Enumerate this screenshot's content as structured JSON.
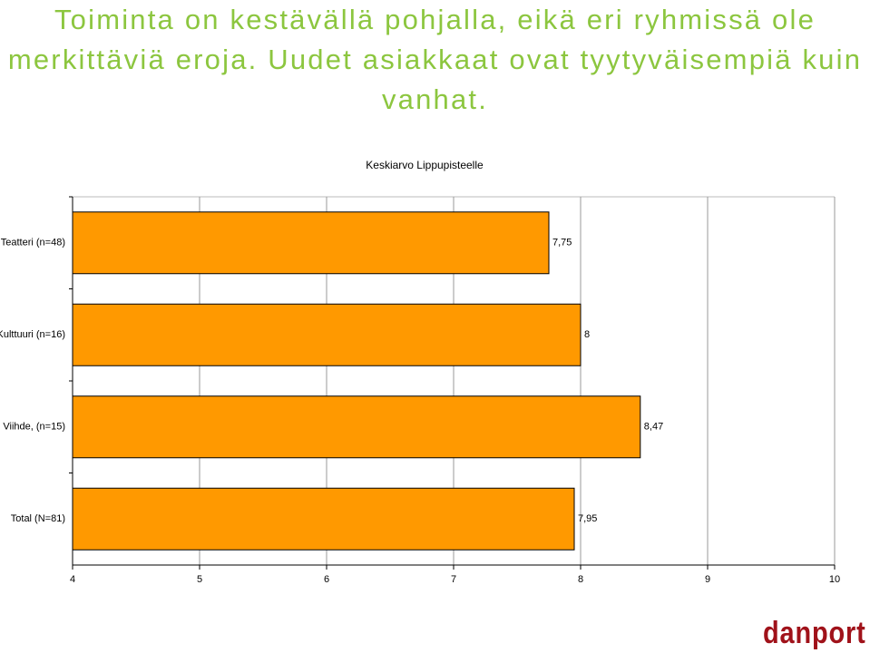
{
  "headline": "Toiminta on kestävällä pohjalla, eikä eri ryhmissä ole merkittäviä eroja. Uudet asiakkaat ovat tyytyväisempiä kuin vanhat.",
  "logo": "danport",
  "chart_data": {
    "type": "bar",
    "orientation": "horizontal",
    "title": "Keskiarvo Lippupisteelle",
    "categories": [
      "Teatteri (n=48)",
      "Kulttuuri (n=16)",
      "Viihde, (n=15)",
      "Total (N=81)"
    ],
    "values": [
      7.75,
      8,
      8.47,
      7.95
    ],
    "value_labels": [
      "7,75",
      "8",
      "8,47",
      "7,95"
    ],
    "color": "#ff9900",
    "xlim": [
      4,
      10
    ],
    "xticks": [
      4,
      5,
      6,
      7,
      8,
      9,
      10
    ],
    "grid": true
  }
}
